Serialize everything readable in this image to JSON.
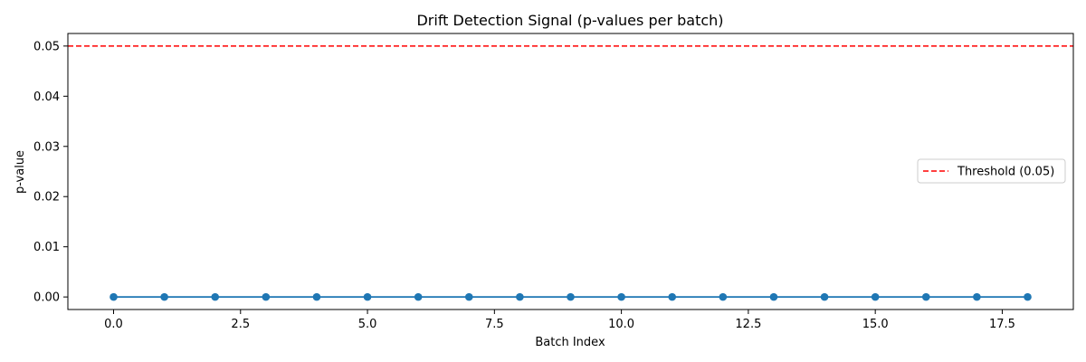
{
  "chart_data": {
    "type": "line",
    "title": "Drift Detection Signal (p-values per batch)",
    "xlabel": "Batch Index",
    "ylabel": "p-value",
    "xlim": [
      -0.9,
      18.9
    ],
    "ylim": [
      -0.0025,
      0.0525
    ],
    "xticks": [
      0.0,
      2.5,
      5.0,
      7.5,
      10.0,
      12.5,
      15.0,
      17.5
    ],
    "xtick_labels": [
      "0.0",
      "2.5",
      "5.0",
      "7.5",
      "10.0",
      "12.5",
      "15.0",
      "17.5"
    ],
    "yticks": [
      0.0,
      0.01,
      0.02,
      0.03,
      0.04,
      0.05
    ],
    "ytick_labels": [
      "0.00",
      "0.01",
      "0.02",
      "0.03",
      "0.04",
      "0.05"
    ],
    "grid": false,
    "series": [
      {
        "x": [
          0,
          1,
          2,
          3,
          4,
          5,
          6,
          7,
          8,
          9,
          10,
          11,
          12,
          13,
          14,
          15,
          16,
          17,
          18
        ],
        "values": [
          0,
          0,
          0,
          0,
          0,
          0,
          0,
          0,
          0,
          0,
          0,
          0,
          0,
          0,
          0,
          0,
          0,
          0,
          0
        ],
        "color": "#1f77b4",
        "marker": "circle"
      }
    ],
    "threshold": {
      "value": 0.05,
      "label": "Threshold (0.05)",
      "color": "#ff0000",
      "style": "dashed"
    },
    "legend": {
      "placement": "center-right",
      "entries": [
        "Threshold (0.05)"
      ]
    }
  }
}
